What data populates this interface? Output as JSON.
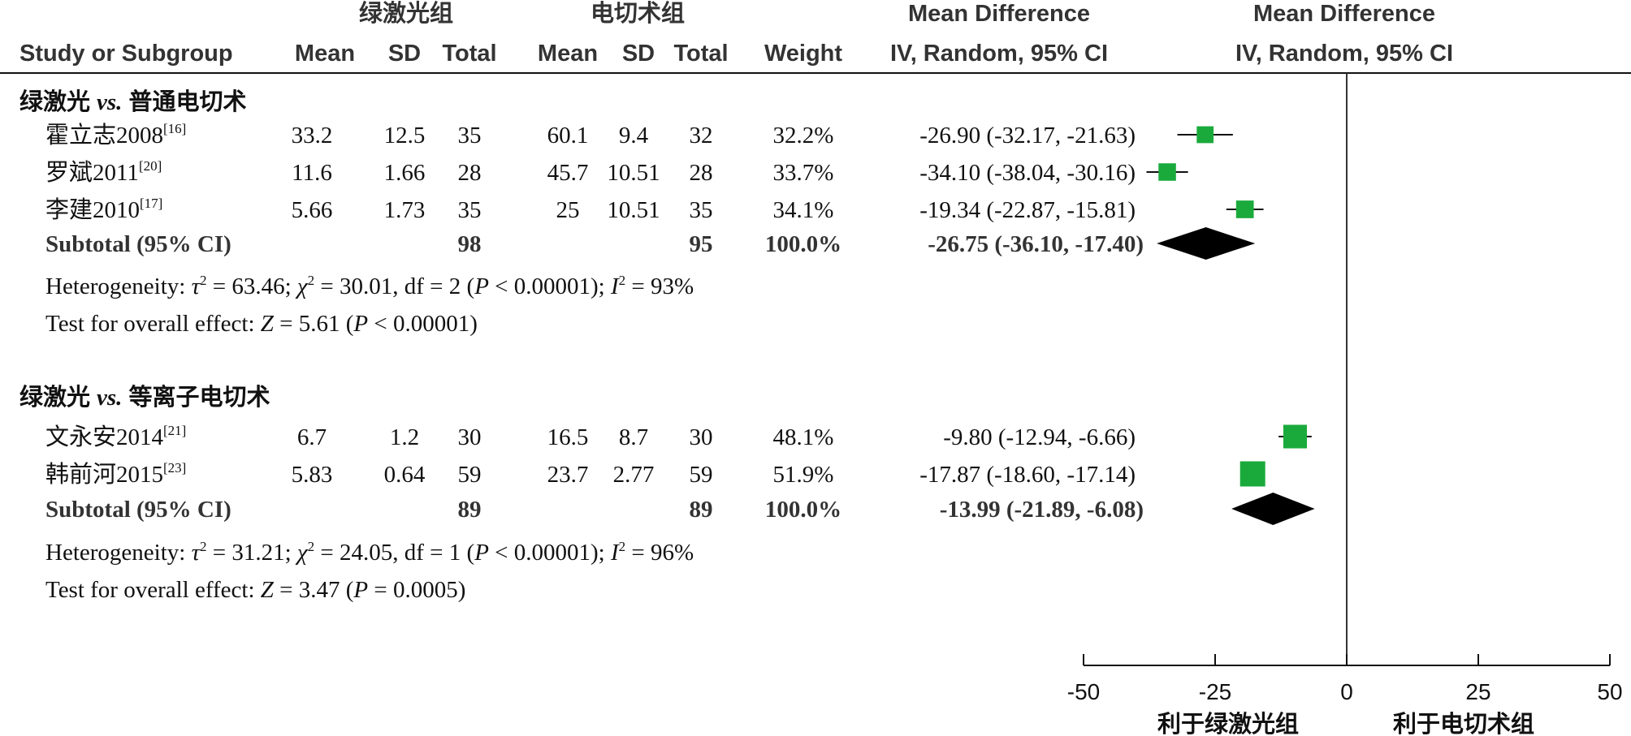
{
  "header": {
    "group_a": "绿激光组",
    "group_b": "电切术组",
    "md_title_left": "Mean Difference",
    "md_title_right": "Mean Difference",
    "col_study": "Study or Subgroup",
    "col_mean_a": "Mean",
    "col_sd_a": "SD",
    "col_total_a": "Total",
    "col_mean_b": "Mean",
    "col_sd_b": "SD",
    "col_total_b": "Total",
    "col_weight": "Weight",
    "col_ci_left": "IV, Random, 95% CI",
    "col_ci_right": "IV, Random, 95% CI"
  },
  "chart_data": {
    "type": "forest",
    "x_axis": {
      "ticks": [
        -50,
        -25,
        0,
        25,
        50
      ],
      "tick_labels": [
        "-50",
        "-25",
        "0",
        "25",
        "50"
      ],
      "xlim": [
        -50,
        50
      ],
      "null_line": 0
    },
    "axis_label_left": "利于绿激光组",
    "axis_label_right": "利于电切术组",
    "square_color": "#1aaa3c",
    "diamond_color": "#000000",
    "subgroups": [
      {
        "title": "绿激光",
        "vs": "vs.",
        "title_suffix": "普通电切术",
        "studies": [
          {
            "name": "霍立志2008",
            "ref": "[16]",
            "mean_a": "33.2",
            "sd_a": "12.5",
            "total_a": "35",
            "mean_b": "60.1",
            "sd_b": "9.4",
            "total_b": "32",
            "weight": "32.2%",
            "ci_text": "-26.90 (-32.17, -21.63)",
            "md": -26.9,
            "lo": -32.17,
            "hi": -21.63,
            "w": 32.2
          },
          {
            "name": "罗斌2011",
            "ref": "[20]",
            "mean_a": "11.6",
            "sd_a": "1.66",
            "total_a": "28",
            "mean_b": "45.7",
            "sd_b": "10.51",
            "total_b": "28",
            "weight": "33.7%",
            "ci_text": "-34.10 (-38.04, -30.16)",
            "md": -34.1,
            "lo": -38.04,
            "hi": -30.16,
            "w": 33.7
          },
          {
            "name": "李建2010",
            "ref": "[17]",
            "mean_a": "5.66",
            "sd_a": "1.73",
            "total_a": "35",
            "mean_b": "25",
            "sd_b": "10.51",
            "total_b": "35",
            "weight": "34.1%",
            "ci_text": "-19.34 (-22.87, -15.81)",
            "md": -19.34,
            "lo": -22.87,
            "hi": -15.81,
            "w": 34.1
          }
        ],
        "subtotal": {
          "label": "Subtotal (95% CI)",
          "total_a": "98",
          "total_b": "95",
          "weight": "100.0%",
          "ci_text": "-26.75 (-36.10, -17.40)",
          "md": -26.75,
          "lo": -36.1,
          "hi": -17.4
        },
        "heterogeneity": {
          "prefix": "Heterogeneity: ",
          "tau_sym": "τ",
          "tau_val": " = 63.46; ",
          "chi_sym": "χ",
          "chi_val": " = 30.01, df = 2 (",
          "p_sym": "P",
          "p_val": " < 0.00001); ",
          "i_sym": "I",
          "i_val": " = 93%",
          "sq": "2"
        },
        "overall": {
          "prefix": "Test for overall effect: ",
          "z_sym": "Z",
          "z_val": " = 5.61 (",
          "p_sym": "P",
          "p_val": " < 0.00001)"
        }
      },
      {
        "title": "绿激光",
        "vs": "vs.",
        "title_suffix": "等离子电切术",
        "studies": [
          {
            "name": "文永安2014",
            "ref": "[21]",
            "mean_a": "6.7",
            "sd_a": "1.2",
            "total_a": "30",
            "mean_b": "16.5",
            "sd_b": "8.7",
            "total_b": "30",
            "weight": "48.1%",
            "ci_text": "-9.80 (-12.94, -6.66)",
            "md": -9.8,
            "lo": -12.94,
            "hi": -6.66,
            "w": 48.1
          },
          {
            "name": "韩前河2015",
            "ref": "[23]",
            "mean_a": "5.83",
            "sd_a": "0.64",
            "total_a": "59",
            "mean_b": "23.7",
            "sd_b": "2.77",
            "total_b": "59",
            "weight": "51.9%",
            "ci_text": "-17.87 (-18.60, -17.14)",
            "md": -17.87,
            "lo": -18.6,
            "hi": -17.14,
            "w": 51.9
          }
        ],
        "subtotal": {
          "label": "Subtotal (95% CI)",
          "total_a": "89",
          "total_b": "89",
          "weight": "100.0%",
          "ci_text": "-13.99 (-21.89, -6.08)",
          "md": -13.99,
          "lo": -21.89,
          "hi": -6.08
        },
        "heterogeneity": {
          "prefix": "Heterogeneity: ",
          "tau_sym": "τ",
          "tau_val": " = 31.21; ",
          "chi_sym": "χ",
          "chi_val": " = 24.05, df = 1 (",
          "p_sym": "P",
          "p_val": " < 0.00001); ",
          "i_sym": "I",
          "i_val": " = 96%",
          "sq": "2"
        },
        "overall": {
          "prefix": "Test for overall effect: ",
          "z_sym": "Z",
          "z_val": " = 3.47 (",
          "p_sym": "P",
          "p_val": " = 0.0005)"
        }
      }
    ]
  }
}
